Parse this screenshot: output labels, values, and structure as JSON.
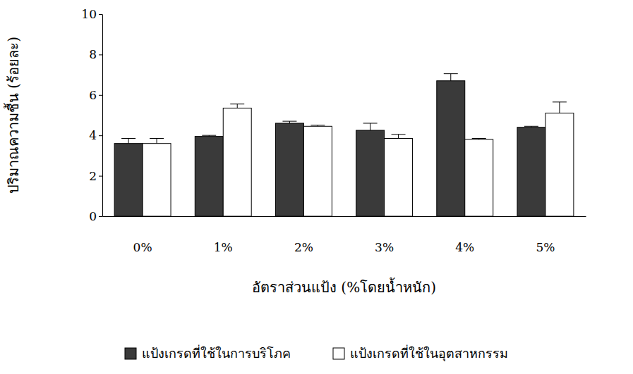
{
  "chart_data": {
    "type": "bar",
    "x_label": "อัตราส่วนแป้ง (%โดยน้ำหนัก)",
    "y_label": "ปริมาณความชื้น (ร้อยละ)",
    "categories": [
      "0%",
      "1%",
      "2%",
      "3%",
      "4%",
      "5%"
    ],
    "series": [
      {
        "name": "แป้งเกรดที่ใช้ในการบริโภค",
        "color": "#3a3a3a",
        "values": [
          3.6,
          3.95,
          4.6,
          4.25,
          6.7,
          4.4
        ],
        "errors": [
          0.25,
          0.05,
          0.1,
          0.35,
          0.35,
          0.05
        ]
      },
      {
        "name": "แป้งเกรดที่ใช้ในอุตสาหกรรม",
        "color": "#ffffff",
        "values": [
          3.6,
          5.35,
          4.45,
          3.85,
          3.8,
          5.1
        ],
        "errors": [
          0.25,
          0.2,
          0.05,
          0.2,
          0.05,
          0.55
        ]
      }
    ],
    "ylim": [
      0,
      10
    ],
    "yticks": [
      0,
      2,
      4,
      6,
      8,
      10
    ],
    "grid": false,
    "legend": "bottom"
  }
}
